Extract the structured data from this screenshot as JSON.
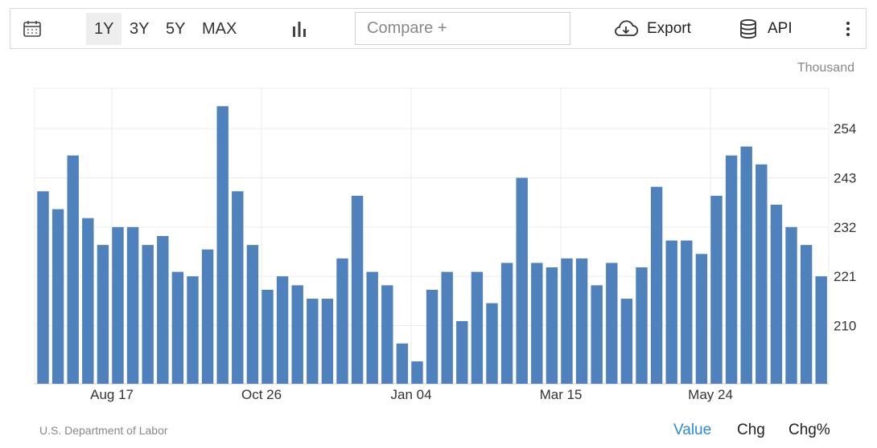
{
  "toolbar": {
    "calendar_icon": "calendar-icon",
    "ranges": [
      "1Y",
      "3Y",
      "5Y",
      "MAX"
    ],
    "active_range": "1Y",
    "chart_type_icon": "bar-chart-icon",
    "compare_placeholder": "Compare +",
    "export_label": "Export",
    "export_icon": "cloud-download-icon",
    "api_label": "API",
    "api_icon": "database-icon",
    "more_icon": "more-vertical-icon"
  },
  "unit_label": "Thousand",
  "source": "U.S. Department of Labor",
  "modes": {
    "value": "Value",
    "chg": "Chg",
    "chgpct": "Chg%",
    "active": "Value",
    "active_color": "#2b8ad6"
  },
  "chart_data": {
    "type": "bar",
    "bar_color": "#4f81bd",
    "ylim": [
      197,
      263
    ],
    "yticks": [
      210,
      221,
      232,
      243,
      254
    ],
    "grid": true,
    "y_axis_position": "right",
    "x_tick_labels": [
      {
        "label": "Aug 17",
        "index": 5
      },
      {
        "label": "Oct 26",
        "index": 15
      },
      {
        "label": "Jan 04",
        "index": 25
      },
      {
        "label": "Mar 15",
        "index": 35
      },
      {
        "label": "May 24",
        "index": 45
      }
    ],
    "values": [
      240,
      236,
      248,
      234,
      228,
      232,
      232,
      228,
      230,
      222,
      221,
      227,
      259,
      240,
      228,
      218,
      221,
      219,
      216,
      216,
      225,
      239,
      222,
      219,
      206,
      202,
      218,
      222,
      211,
      222,
      215,
      224,
      243,
      224,
      223,
      225,
      225,
      219,
      224,
      216,
      223,
      241,
      229,
      229,
      226,
      239,
      248,
      250,
      246,
      237,
      232,
      228,
      221
    ]
  }
}
